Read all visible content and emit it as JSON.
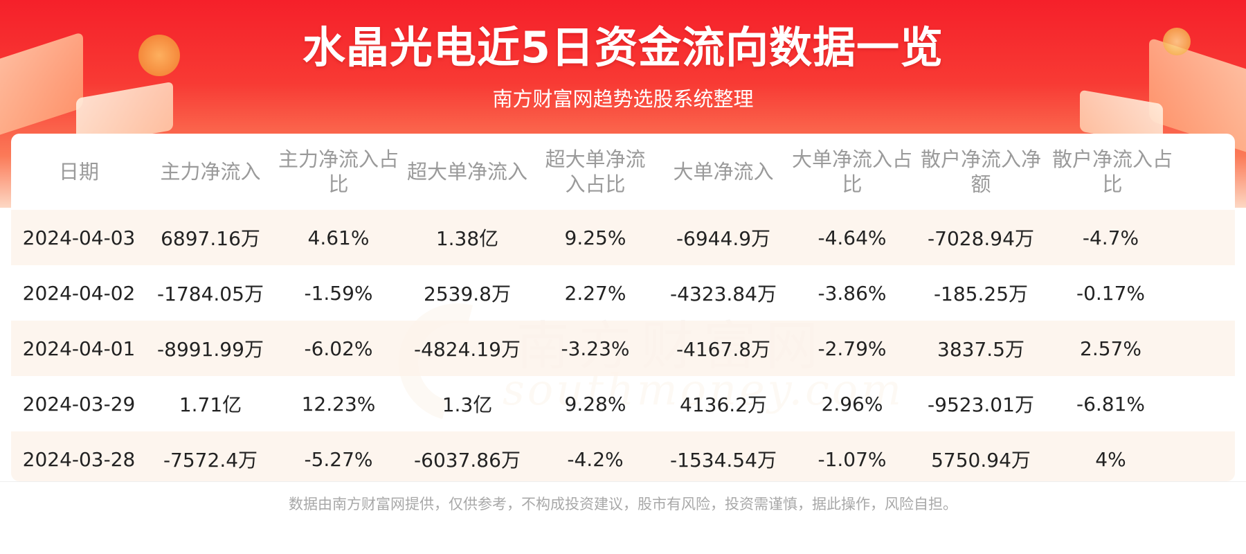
{
  "header": {
    "title": "水晶光电近5日资金流向数据一览",
    "subtitle": "南方财富网趋势选股系统整理"
  },
  "watermark": {
    "cn": "南方财富网",
    "en": "southmoney.com"
  },
  "table": {
    "columns": [
      "日期",
      "主力净流入",
      "主力净流入占比",
      "超大单净流入",
      "超大单净流入占比",
      "大单净流入",
      "大单净流入占比",
      "散户净流入净额",
      "散户净流入占比"
    ],
    "rows": [
      [
        "2024-04-03",
        "6897.16万",
        "4.61%",
        "1.38亿",
        "9.25%",
        "-6944.9万",
        "-4.64%",
        "-7028.94万",
        "-4.7%"
      ],
      [
        "2024-04-02",
        "-1784.05万",
        "-1.59%",
        "2539.8万",
        "2.27%",
        "-4323.84万",
        "-3.86%",
        "-185.25万",
        "-0.17%"
      ],
      [
        "2024-04-01",
        "-8991.99万",
        "-6.02%",
        "-4824.19万",
        "-3.23%",
        "-4167.8万",
        "-2.79%",
        "3837.5万",
        "2.57%"
      ],
      [
        "2024-03-29",
        "1.71亿",
        "12.23%",
        "1.3亿",
        "9.28%",
        "4136.2万",
        "2.96%",
        "-9523.01万",
        "-6.81%"
      ],
      [
        "2024-03-28",
        "-7572.4万",
        "-5.27%",
        "-6037.86万",
        "-4.2%",
        "-1534.54万",
        "-1.07%",
        "5750.94万",
        "4%"
      ]
    ]
  },
  "footer": {
    "disclaimer": "数据由南方财富网提供，仅供参考，不构成投资建议，股市有风险，投资需谨慎，据此操作，风险自担。"
  },
  "colors": {
    "banner_red": "#f5202a",
    "row_tint": "#fdf4ec",
    "header_text": "#9a9a9a"
  }
}
